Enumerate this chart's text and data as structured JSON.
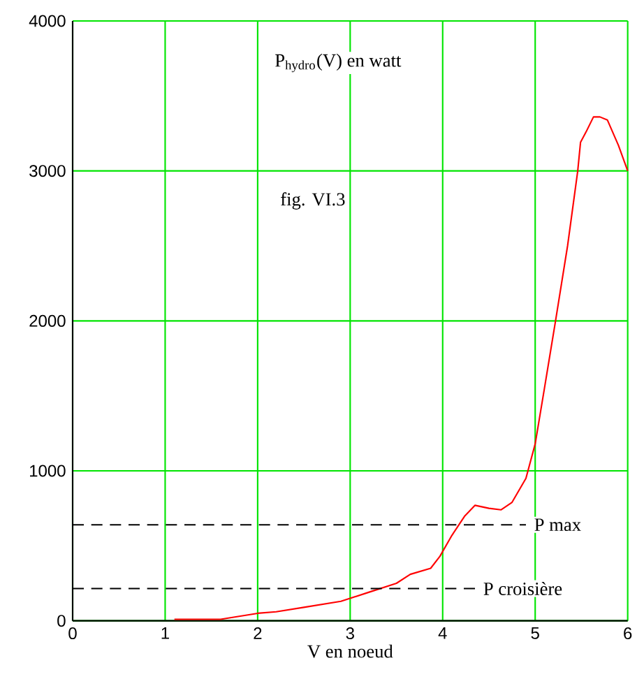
{
  "chart_data": {
    "type": "line",
    "xlabel": "V en noeud",
    "annotations": [
      "P$_{hydro}$(V) en watt",
      "fig. VI.3"
    ],
    "x": [
      1.1,
      1.6,
      2.0,
      2.2,
      2.5,
      2.9,
      3.2,
      3.5,
      3.65,
      3.87,
      3.97,
      4.1,
      4.24,
      4.35,
      4.5,
      4.63,
      4.75,
      4.9,
      5.0,
      5.1,
      5.22,
      5.35,
      5.46,
      5.49,
      5.55,
      5.63,
      5.7,
      5.78,
      5.9,
      6.0
    ],
    "series": [
      {
        "color": "#ff0000",
        "values": [
          10,
          10,
          50,
          60,
          90,
          130,
          190,
          250,
          310,
          350,
          430,
          570,
          700,
          770,
          750,
          740,
          790,
          950,
          1180,
          1550,
          2000,
          2500,
          3000,
          3190,
          3260,
          3360,
          3360,
          3340,
          3170,
          3000
        ]
      }
    ],
    "xlim": [
      0,
      6
    ],
    "ylim": [
      0,
      4000
    ],
    "xticks": [
      0,
      1,
      2,
      3,
      4,
      5,
      6
    ],
    "yticks": [
      0,
      1000,
      2000,
      3000,
      4000
    ],
    "grid": true,
    "line_style": "solid",
    "marker": "none",
    "ref_lines": [
      {
        "axis": "y",
        "value": 640,
        "label": "P max",
        "color": "#000000",
        "line_style": "dashed"
      },
      {
        "axis": "y",
        "value": 215,
        "label": "P croisière",
        "color": "#000000",
        "line_style": "dashed"
      }
    ]
  }
}
